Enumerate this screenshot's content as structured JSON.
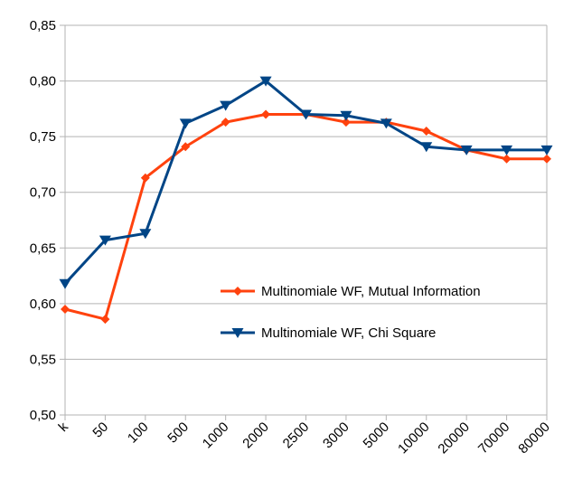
{
  "chart_data": {
    "type": "line",
    "title": "",
    "xlabel": "",
    "ylabel": "",
    "categories": [
      "k",
      "50",
      "100",
      "500",
      "1000",
      "2000",
      "2500",
      "3000",
      "5000",
      "10000",
      "20000",
      "70000",
      "80000"
    ],
    "ylim": [
      0.5,
      0.85
    ],
    "yticks": [
      "0,50",
      "0,55",
      "0,60",
      "0,65",
      "0,70",
      "0,75",
      "0,80",
      "0,85"
    ],
    "grid": "horizontal",
    "legend_position": "center-right",
    "series": [
      {
        "name": "Multinomiale WF, Mutual Information",
        "color": "#ff420e",
        "marker": "diamond",
        "values": [
          0.595,
          0.586,
          0.713,
          0.741,
          0.763,
          0.77,
          0.77,
          0.763,
          0.763,
          0.755,
          0.738,
          0.73,
          0.73
        ]
      },
      {
        "name": "Multinomiale WF, Chi Square",
        "color": "#004586",
        "marker": "triangle-down",
        "values": [
          0.618,
          0.657,
          0.663,
          0.762,
          0.778,
          0.8,
          0.77,
          0.769,
          0.762,
          0.741,
          0.738,
          0.738,
          0.738
        ]
      }
    ]
  }
}
